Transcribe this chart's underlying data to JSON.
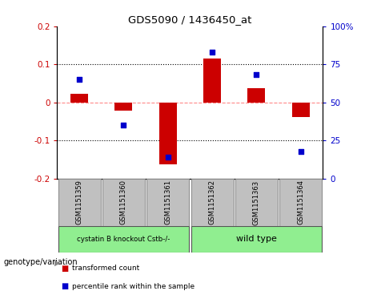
{
  "title": "GDS5090 / 1436450_at",
  "samples": [
    "GSM1151359",
    "GSM1151360",
    "GSM1151361",
    "GSM1151362",
    "GSM1151363",
    "GSM1151364"
  ],
  "red_values": [
    0.022,
    -0.022,
    -0.162,
    0.115,
    0.038,
    -0.038
  ],
  "blue_percentiles": [
    65,
    35,
    14,
    83,
    68,
    18
  ],
  "ylim_left": [
    -0.2,
    0.2
  ],
  "ylim_right": [
    0,
    100
  ],
  "yticks_left": [
    -0.2,
    -0.1,
    0.0,
    0.1,
    0.2
  ],
  "yticks_right": [
    0,
    25,
    50,
    75,
    100
  ],
  "ytick_labels_right": [
    "0",
    "25",
    "50",
    "75",
    "100%"
  ],
  "group1_label": "cystatin B knockout Cstb-/-",
  "group2_label": "wild type",
  "group1_color": "#90EE90",
  "group2_color": "#90EE90",
  "bar_color": "#CC0000",
  "dot_color": "#0000CC",
  "bg_color": "#FFFFFF",
  "zero_line_color": "#FF8888",
  "genotype_label": "genotype/variation",
  "legend_red": "transformed count",
  "legend_blue": "percentile rank within the sample",
  "sample_box_color": "#C0C0C0",
  "bar_width": 0.4
}
